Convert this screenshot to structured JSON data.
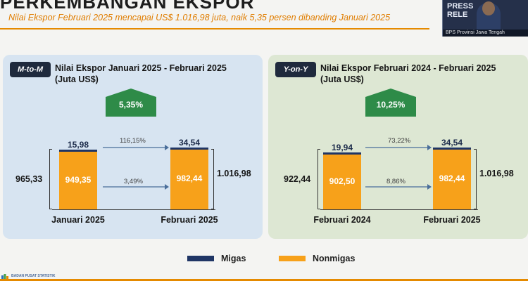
{
  "header": {
    "title": "PERKEMBANGAN EKSPOR",
    "subtitle": "Nilai Ekspor Februari 2025 mencapai US$ 1.016,98 juta, naik 5,35 persen dibanding Januari 2025"
  },
  "video": {
    "line1": "PRESS",
    "line2": "RELE",
    "caption": "BPS Provinsi Jawa Tengah"
  },
  "colors": {
    "migas": "#1f3565",
    "nonmigas": "#f7a11a",
    "badge": "#2e8b48",
    "accent": "#e58a00"
  },
  "chart_data": [
    {
      "type": "bar",
      "stacked": true,
      "tag": "M-to-M",
      "title": "Nilai Ekspor Januari 2025 - Februari 2025",
      "unit": "(Juta US$)",
      "categories": [
        "Januari 2025",
        "Februari 2025"
      ],
      "series": [
        {
          "name": "Migas",
          "values": [
            15.98,
            34.54
          ],
          "labels": [
            "15,98",
            "34,54"
          ]
        },
        {
          "name": "Nonmigas",
          "values": [
            949.35,
            982.44
          ],
          "labels": [
            "949,35",
            "982,44"
          ]
        }
      ],
      "totals": [
        "965,33",
        "1.016,98"
      ],
      "growth_total": "5,35%",
      "growth_migas": "116,15%",
      "growth_nonmigas": "3,49%"
    },
    {
      "type": "bar",
      "stacked": true,
      "tag": "Y-on-Y",
      "title": "Nilai Ekspor Februari 2024 - Februari 2025",
      "unit": "(Juta US$)",
      "categories": [
        "Februari 2024",
        "Februari 2025"
      ],
      "series": [
        {
          "name": "Migas",
          "values": [
            19.94,
            34.54
          ],
          "labels": [
            "19,94",
            "34,54"
          ]
        },
        {
          "name": "Nonmigas",
          "values": [
            902.5,
            982.44
          ],
          "labels": [
            "902,50",
            "982,44"
          ]
        }
      ],
      "totals": [
        "922,44",
        "1.016,98"
      ],
      "growth_total": "10,25%",
      "growth_migas": "73,22%",
      "growth_nonmigas": "8,86%"
    }
  ],
  "legend": {
    "migas": "Migas",
    "nonmigas": "Nonmigas"
  },
  "footer": {
    "logo_text": "BADAN PUSAT STATISTIK"
  }
}
